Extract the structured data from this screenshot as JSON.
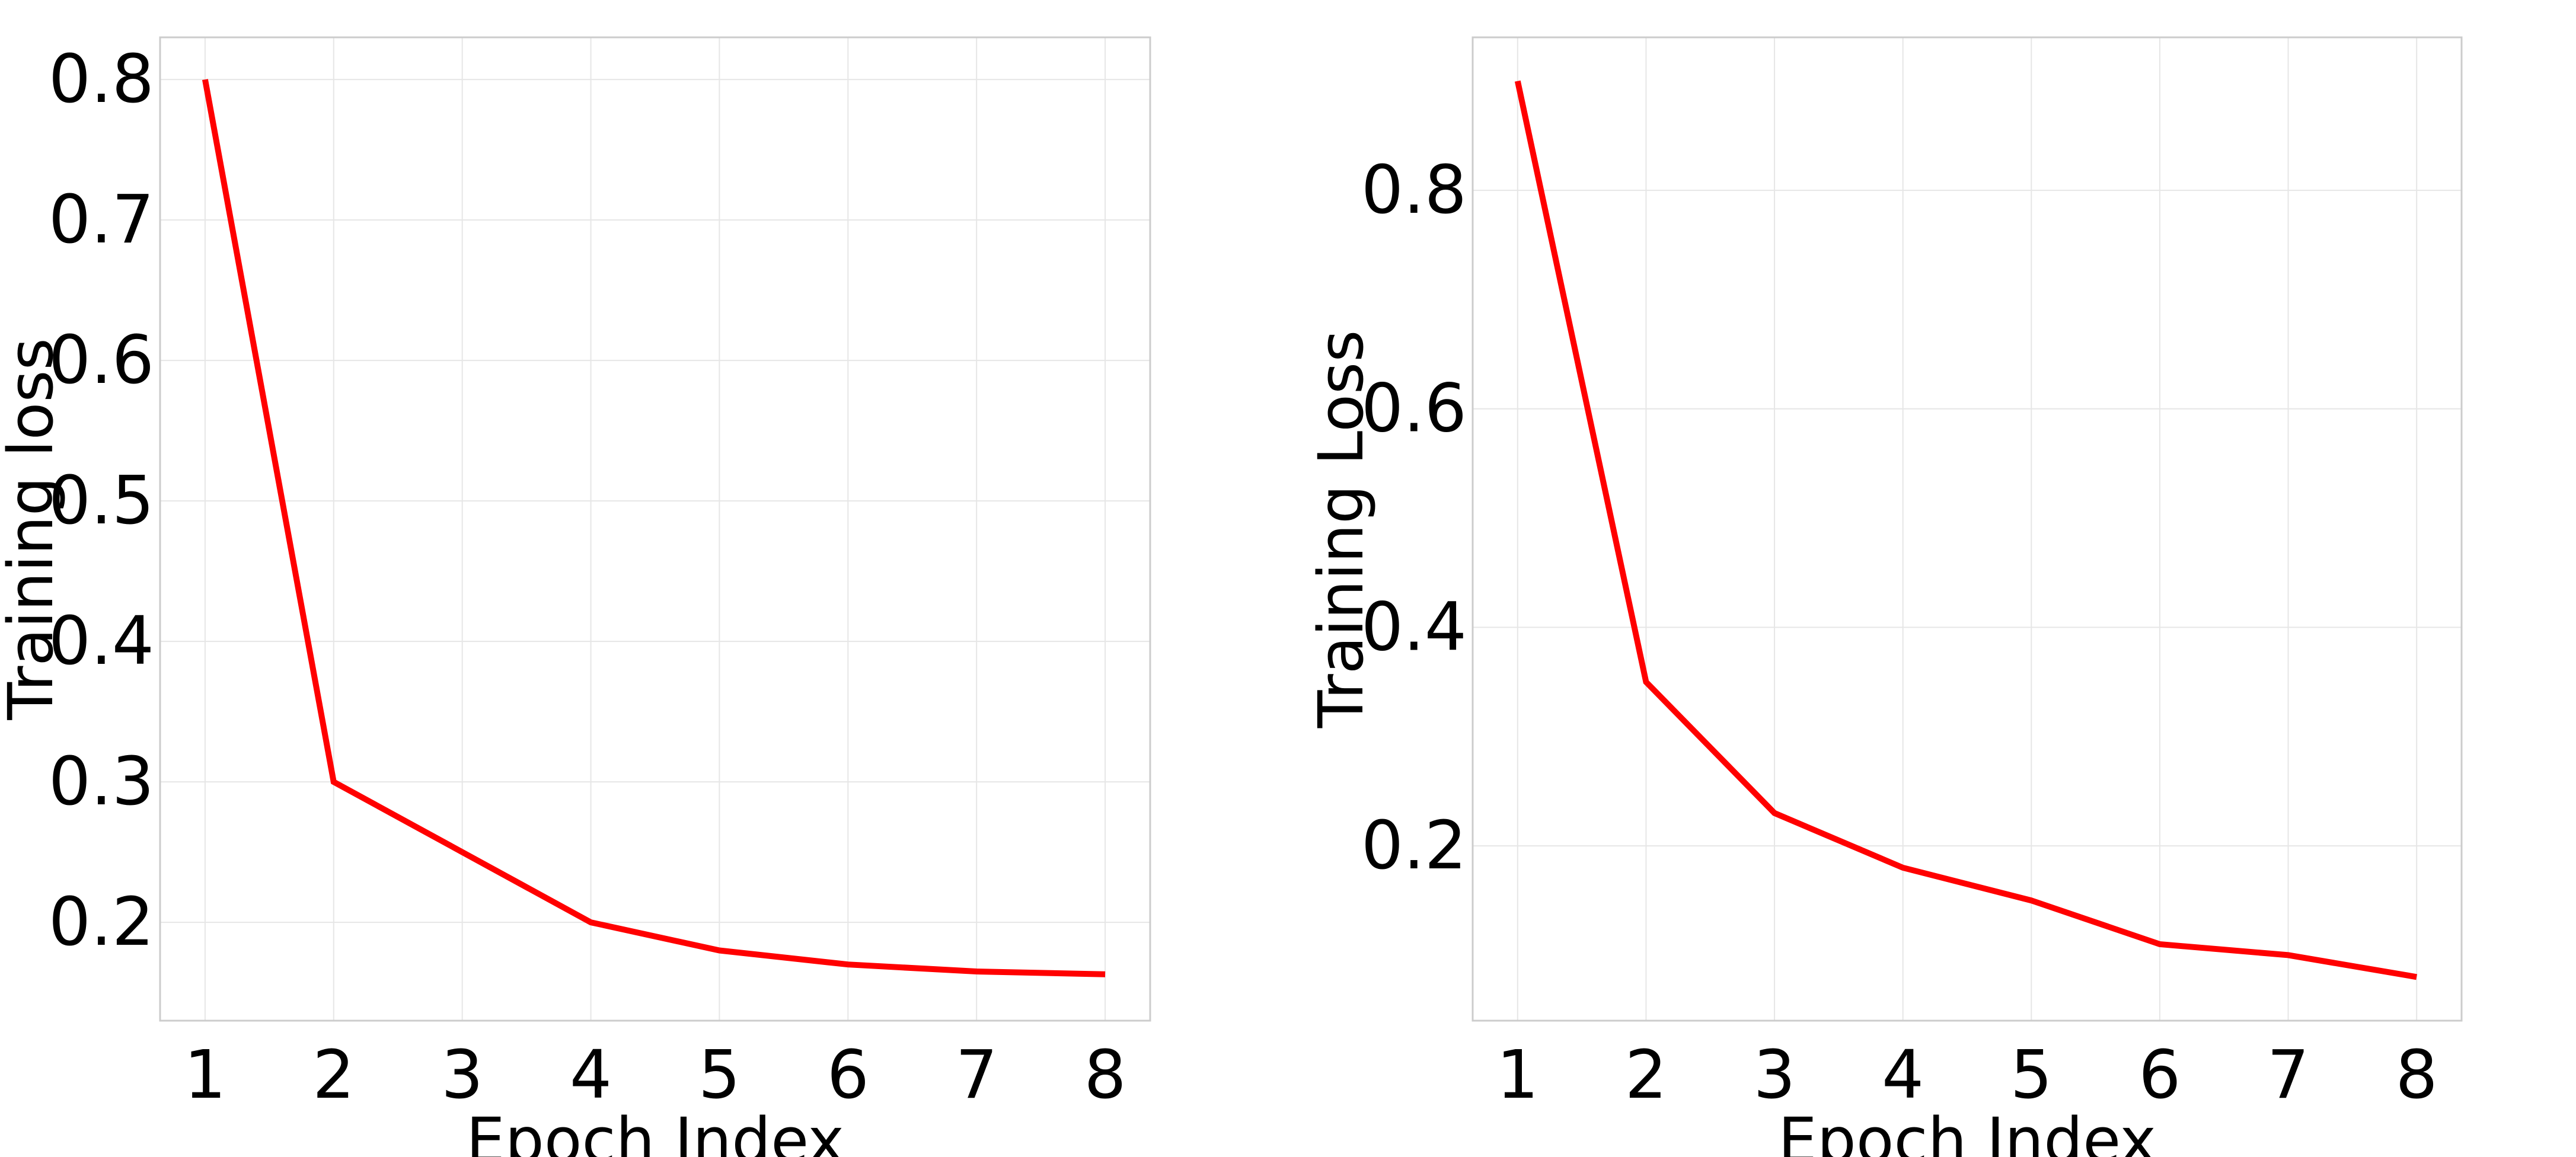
{
  "chart_data": [
    {
      "type": "line",
      "title": "",
      "xlabel": "Epoch Index",
      "ylabel": "Training loss",
      "x": [
        1,
        2,
        3,
        4,
        5,
        6,
        7,
        8
      ],
      "series": [
        {
          "values": [
            0.8,
            0.3,
            0.25,
            0.2,
            0.18,
            0.17,
            0.165,
            0.163
          ],
          "color": "#ff0000"
        }
      ],
      "xlim": [
        0.65,
        8.35
      ],
      "ylim": [
        0.13,
        0.83
      ],
      "xticks": [
        1,
        2,
        3,
        4,
        5,
        6,
        7,
        8
      ],
      "xtick_labels": [
        "1",
        "2",
        "3",
        "4",
        "5",
        "6",
        "7",
        "8"
      ],
      "yticks": [
        0.2,
        0.3,
        0.4,
        0.5,
        0.6,
        0.7,
        0.8
      ],
      "ytick_labels": [
        "0.2",
        "0.3",
        "0.4",
        "0.5",
        "0.6",
        "0.7",
        "0.8"
      ],
      "grid": true,
      "legend": "none"
    },
    {
      "type": "line",
      "title": "",
      "xlabel": "Epoch Index",
      "ylabel": "Training Loss",
      "x": [
        1,
        2,
        3,
        4,
        5,
        6,
        7,
        8
      ],
      "series": [
        {
          "values": [
            0.9,
            0.35,
            0.23,
            0.18,
            0.15,
            0.11,
            0.1,
            0.08
          ],
          "color": "#ff0000"
        }
      ],
      "xlim": [
        0.65,
        8.35
      ],
      "ylim": [
        0.04,
        0.94
      ],
      "xticks": [
        1,
        2,
        3,
        4,
        5,
        6,
        7,
        8
      ],
      "xtick_labels": [
        "1",
        "2",
        "3",
        "4",
        "5",
        "6",
        "7",
        "8"
      ],
      "yticks": [
        0.2,
        0.4,
        0.6,
        0.8
      ],
      "ytick_labels": [
        "0.2",
        "0.4",
        "0.6",
        "0.8"
      ],
      "grid": true,
      "legend": "none"
    }
  ]
}
